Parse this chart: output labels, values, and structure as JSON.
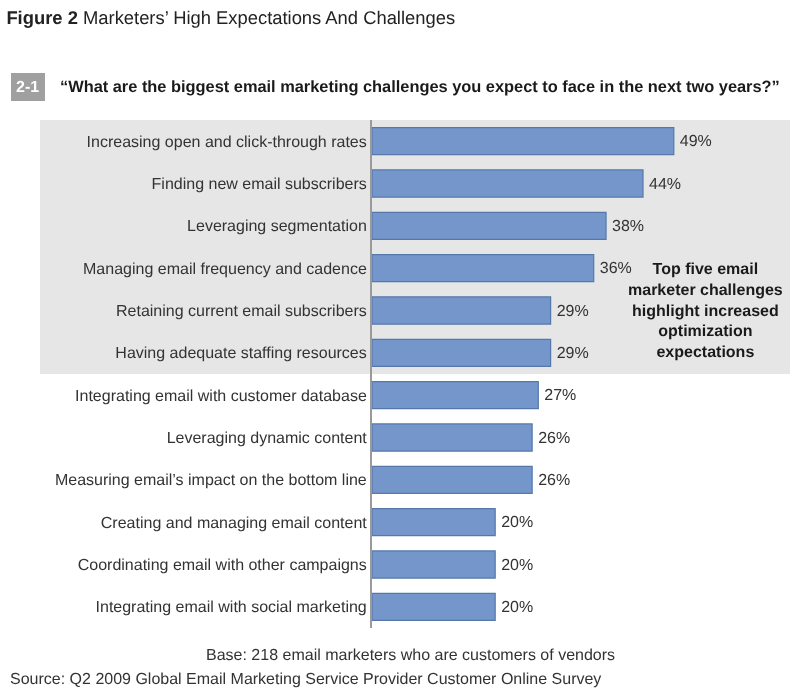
{
  "chart_data": {
    "type": "bar",
    "orientation": "horizontal",
    "title": "Figure 2 Marketers’ High Expectations And Challenges",
    "subtitle": "“What are the biggest email marketing challenges you expect to face in the next two years?”",
    "categories": [
      "Increasing open and click-through rates",
      "Finding new email subscribers",
      "Leveraging segmentation",
      "Managing email frequency and cadence",
      "Retaining current email subscribers",
      "Having adequate staffing resources",
      "Integrating email with customer database",
      "Leveraging dynamic content",
      "Measuring email’s impact on the bottom line",
      "Creating and managing email content",
      "Coordinating email with other campaigns",
      "Integrating email with social marketing"
    ],
    "values": [
      49,
      44,
      38,
      36,
      29,
      29,
      27,
      26,
      26,
      20,
      20,
      20
    ],
    "value_labels": [
      "49%",
      "44%",
      "38%",
      "36%",
      "29%",
      "29%",
      "27%",
      "26%",
      "26%",
      "20%",
      "20%",
      "20%"
    ],
    "color": "#7596cb",
    "tick_labels": "y",
    "grid": false,
    "legend": false,
    "bands": [
      {
        "axis": "y",
        "from": "Increasing open and click-through rates",
        "to": "Having adequate staffing resources",
        "label": "Top five email marketer challenges highlight increased optimization expectations",
        "color": "#e6e6e6"
      }
    ],
    "annotations": [
      "2-1",
      "Base: 218 email marketers who are customers of vendors",
      "Source: Q2 2009 Global Email Marketing Service Provider Customer Online Survey"
    ]
  }
}
